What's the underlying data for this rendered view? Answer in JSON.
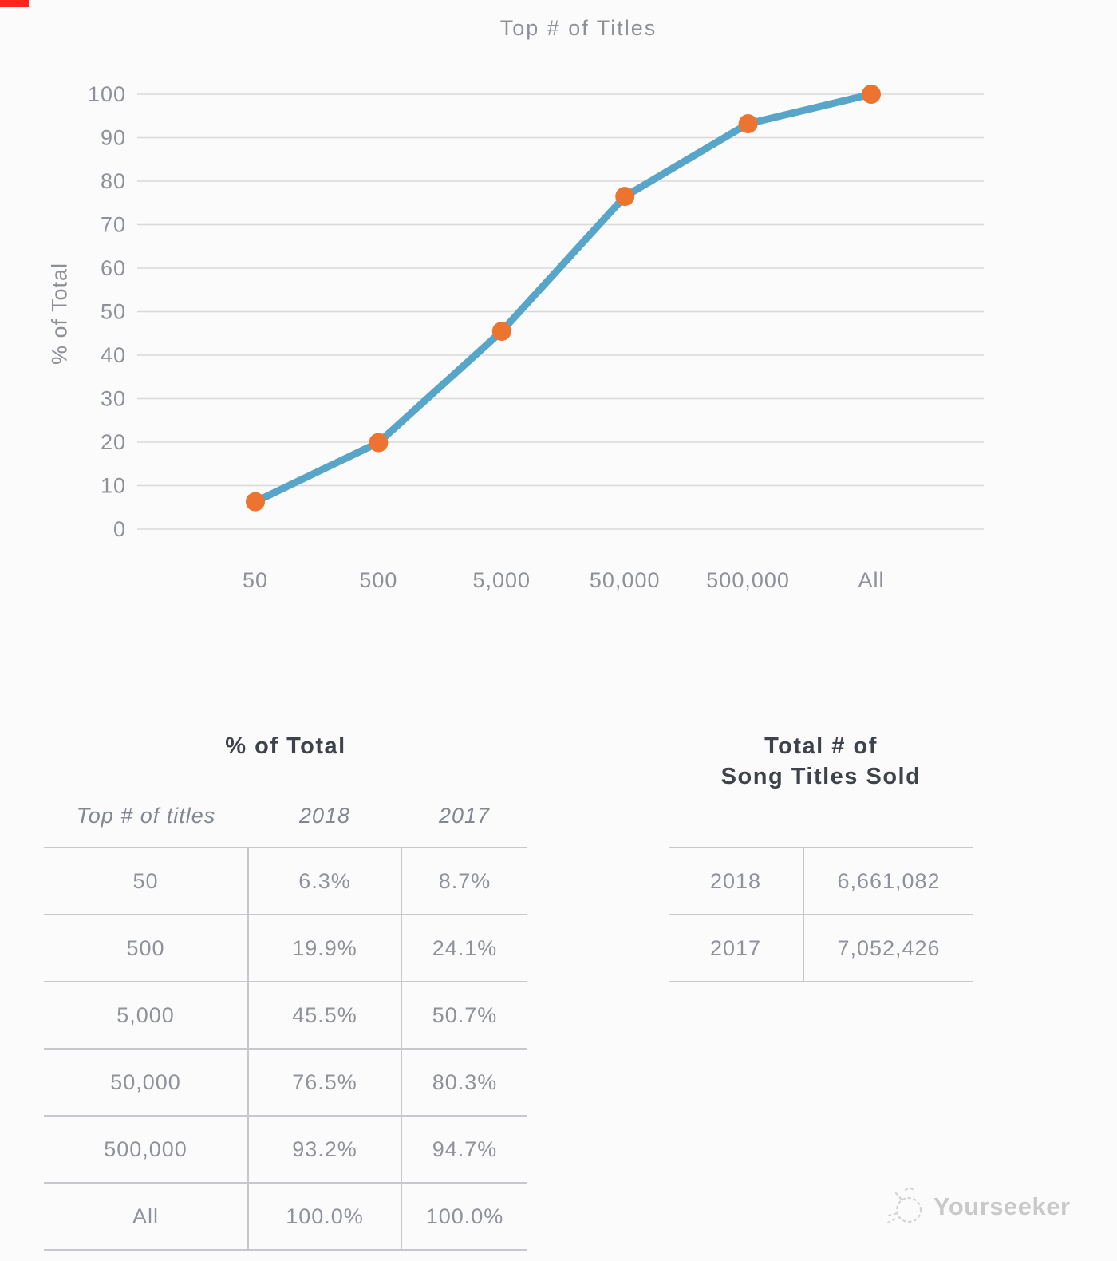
{
  "page": {
    "background": "#fbfbfb",
    "corner_marker_color": "#fb261e"
  },
  "chart_data": {
    "type": "line",
    "title": "Top # of Titles",
    "xlabel": "",
    "ylabel": "% of Total",
    "categories": [
      "50",
      "500",
      "5,000",
      "50,000",
      "500,000",
      "All"
    ],
    "series": [
      {
        "name": "2018",
        "values": [
          6.3,
          19.9,
          45.5,
          76.5,
          93.2,
          100.0
        ]
      }
    ],
    "ylim": [
      0,
      100
    ],
    "ytick_step": 10,
    "grid": true,
    "legend": "none",
    "colors": {
      "line": "#57a5c8",
      "marker": "#ed7430",
      "grid": "#d9d9d9"
    }
  },
  "left_table": {
    "title": "% of Total",
    "columns": [
      "Top # of titles",
      "2018",
      "2017"
    ],
    "rows": [
      {
        "label": "50",
        "y2018": "6.3%",
        "y2017": "8.7%"
      },
      {
        "label": "500",
        "y2018": "19.9%",
        "y2017": "24.1%"
      },
      {
        "label": "5,000",
        "y2018": "45.5%",
        "y2017": "50.7%"
      },
      {
        "label": "50,000",
        "y2018": "76.5%",
        "y2017": "80.3%"
      },
      {
        "label": "500,000",
        "y2018": "93.2%",
        "y2017": "94.7%"
      },
      {
        "label": "All",
        "y2018": "100.0%",
        "y2017": "100.0%"
      }
    ]
  },
  "right_table": {
    "title_line1": "Total # of",
    "title_line2": "Song Titles Sold",
    "rows": [
      {
        "label": "2018",
        "value": "6,661,082"
      },
      {
        "label": "2017",
        "value": "7,052,426"
      }
    ]
  },
  "watermark": {
    "text": "Yourseeker"
  }
}
